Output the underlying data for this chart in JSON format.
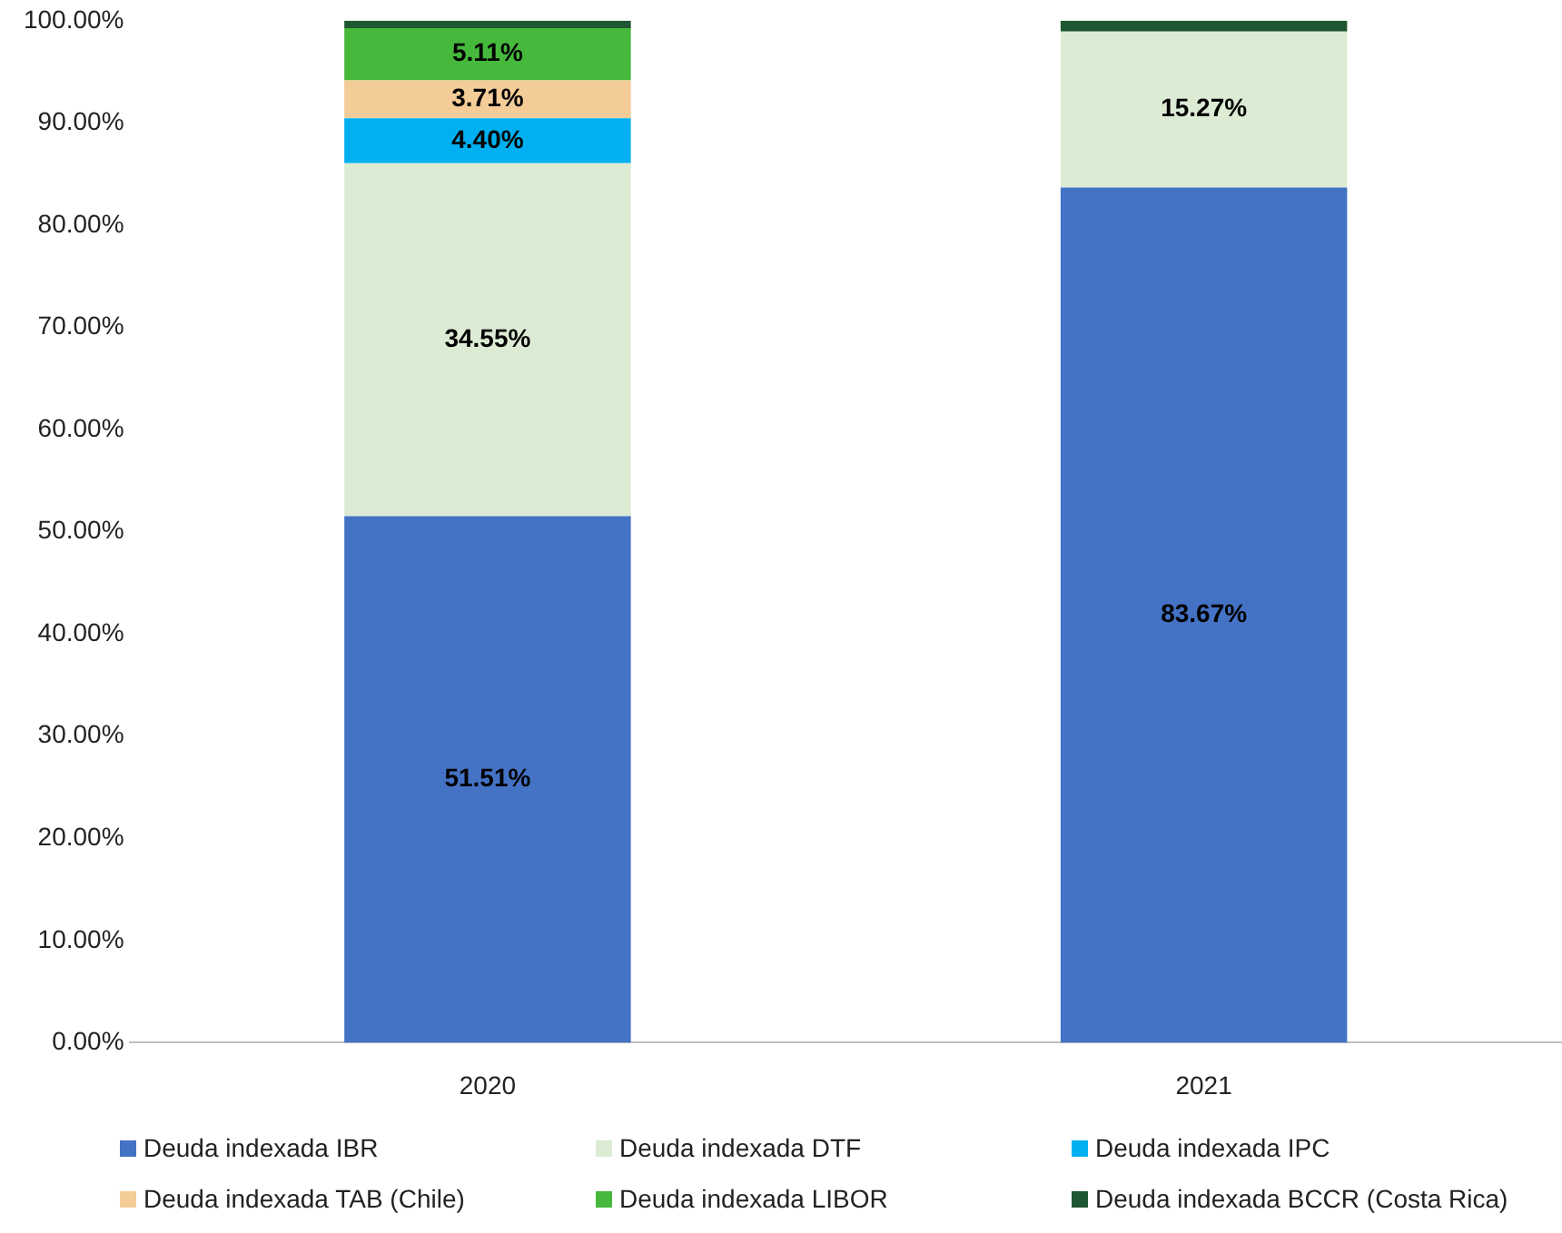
{
  "chart_data": {
    "type": "bar",
    "stacked": true,
    "categories": [
      "2020",
      "2021"
    ],
    "series": [
      {
        "name": "Deuda indexada IBR",
        "color": "#4472c4",
        "values": [
          51.51,
          83.67
        ],
        "value_labels": [
          "51.51%",
          "83.67%"
        ]
      },
      {
        "name": "Deuda indexada DTF",
        "color": "#dcebd4",
        "values": [
          34.55,
          15.27
        ],
        "value_labels": [
          "34.55%",
          "15.27%"
        ]
      },
      {
        "name": "Deuda indexada IPC",
        "color": "#00b0f0",
        "values": [
          4.4,
          null
        ],
        "value_labels": [
          "4.40%",
          null
        ]
      },
      {
        "name": "Deuda indexada TAB (Chile)",
        "color": "#f4cc98",
        "values": [
          3.71,
          null
        ],
        "value_labels": [
          "3.71%",
          null
        ]
      },
      {
        "name": "Deuda indexada LIBOR",
        "color": "#46b93c",
        "values": [
          5.11,
          null
        ],
        "value_labels": [
          "5.11%",
          null
        ]
      },
      {
        "name": "Deuda indexada BCCR (Costa Rica)",
        "color": "#1e5631",
        "values": [
          0.72,
          1.06
        ],
        "value_labels": [
          null,
          null
        ]
      }
    ],
    "ylim": [
      0,
      100
    ],
    "yticks": [
      {
        "value": 0,
        "label": "0.00%"
      },
      {
        "value": 10,
        "label": "10.00%"
      },
      {
        "value": 20,
        "label": "20.00%"
      },
      {
        "value": 30,
        "label": "30.00%"
      },
      {
        "value": 40,
        "label": "40.00%"
      },
      {
        "value": 50,
        "label": "50.00%"
      },
      {
        "value": 60,
        "label": "60.00%"
      },
      {
        "value": 70,
        "label": "70.00%"
      },
      {
        "value": 80,
        "label": "80.00%"
      },
      {
        "value": 90,
        "label": "90.00%"
      },
      {
        "value": 100,
        "label": "100.00%"
      }
    ],
    "grid": false,
    "legend": "bottom"
  }
}
